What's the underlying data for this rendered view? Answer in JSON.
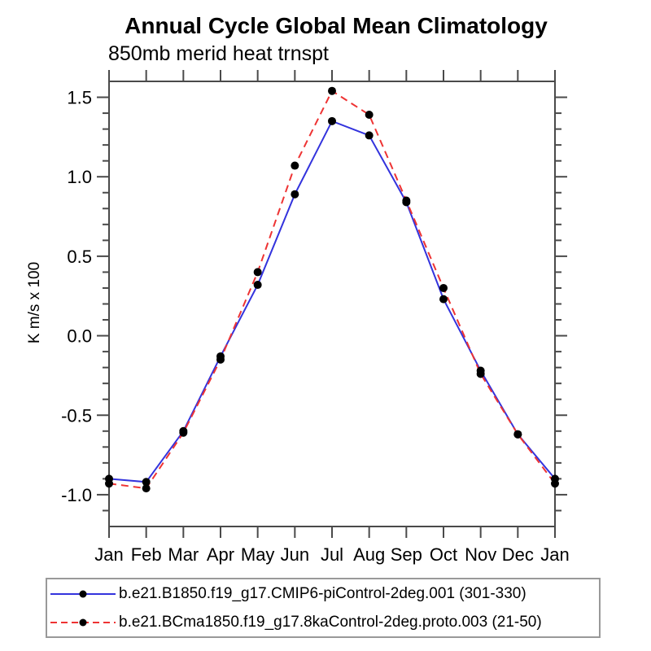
{
  "chart_data": {
    "type": "line",
    "title": "Annual Cycle Global Mean Climatology",
    "subtitle": "850mb merid heat trnspt",
    "ylabel": "K m/s x 100",
    "xlabel": "",
    "categories": [
      "Jan",
      "Feb",
      "Mar",
      "Apr",
      "May",
      "Jun",
      "Jul",
      "Aug",
      "Sep",
      "Oct",
      "Nov",
      "Dec",
      "Jan"
    ],
    "ylim": [
      -1.2,
      1.6
    ],
    "ytick_major_step": 0.5,
    "ytick_minor_step": 0.1,
    "ytick_major_labels": [
      "-1.0",
      "-0.5",
      "0.0",
      "0.5",
      "1.0",
      "1.5"
    ],
    "grid": false,
    "legend_position": "bottom-left-box",
    "frame_color": "#4a4a4a",
    "marker_color": "#000000",
    "series": [
      {
        "name": "b.e21.B1850.f19_g17.CMIP6-piControl-2deg.001 (301-330)",
        "color": "#3333dd",
        "style": "solid",
        "values": [
          -0.9,
          -0.92,
          -0.6,
          -0.13,
          0.32,
          0.89,
          1.35,
          1.26,
          0.84,
          0.23,
          -0.22,
          -0.62,
          -0.9
        ]
      },
      {
        "name": "b.e21.BCma1850.f19_g17.8kaControl-2deg.proto.003 (21-50)",
        "color": "#ee3333",
        "style": "dashed",
        "values": [
          -0.93,
          -0.96,
          -0.61,
          -0.15,
          0.4,
          1.07,
          1.54,
          1.39,
          0.85,
          0.3,
          -0.24,
          -0.62,
          -0.93
        ]
      }
    ]
  }
}
